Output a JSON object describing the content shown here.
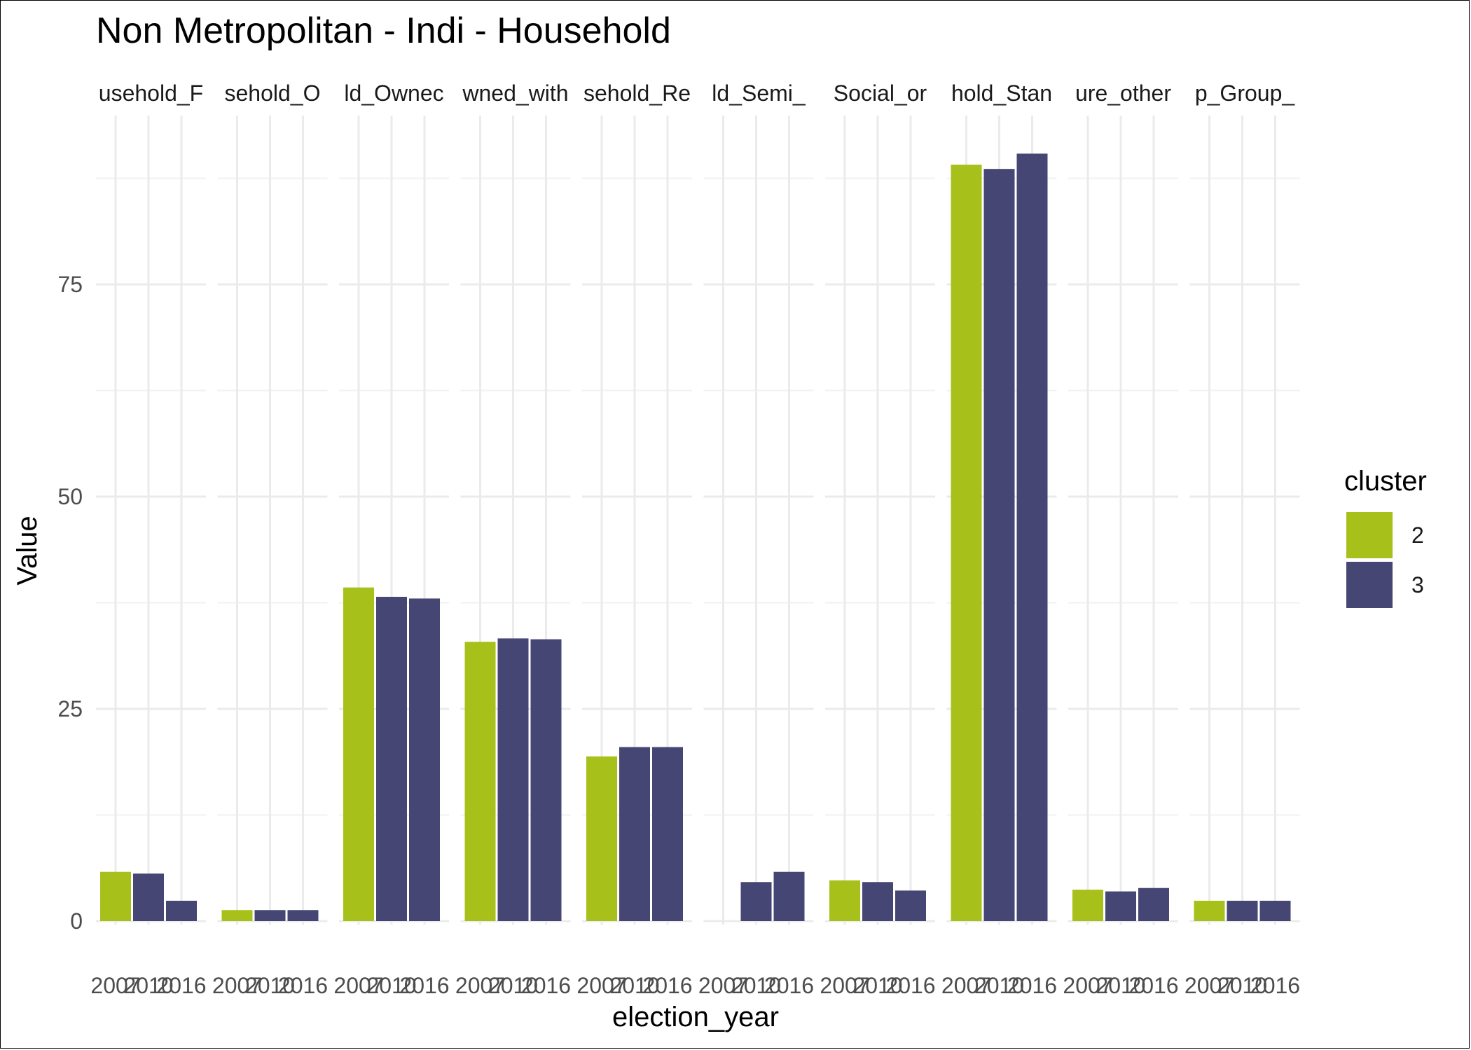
{
  "chart_data": {
    "type": "bar",
    "title": "Non Metropolitan - Indi - Household",
    "xlabel": "election_year",
    "ylabel": "Value",
    "ylim": [
      0,
      91
    ],
    "yticks": [
      0,
      25,
      50,
      75
    ],
    "years": [
      "2007",
      "2010",
      "2016"
    ],
    "legend": {
      "title": "cluster",
      "position": "right",
      "entries": [
        {
          "label": "2",
          "color": "#A8C01A"
        },
        {
          "label": "3",
          "color": "#464674"
        }
      ]
    },
    "facets": [
      {
        "label": "usehold_F",
        "bars": [
          {
            "year": "2007",
            "cluster": "2",
            "value": 5.8
          },
          {
            "year": "2010",
            "cluster": "3",
            "value": 5.6
          },
          {
            "year": "2016",
            "cluster": "3",
            "value": 2.4
          }
        ]
      },
      {
        "label": "sehold_O",
        "bars": [
          {
            "year": "2007",
            "cluster": "2",
            "value": 1.3
          },
          {
            "year": "2010",
            "cluster": "3",
            "value": 1.3
          },
          {
            "year": "2016",
            "cluster": "3",
            "value": 1.3
          }
        ]
      },
      {
        "label": "ld_Ownec",
        "bars": [
          {
            "year": "2007",
            "cluster": "2",
            "value": 39.3
          },
          {
            "year": "2010",
            "cluster": "3",
            "value": 38.2
          },
          {
            "year": "2016",
            "cluster": "3",
            "value": 38.0
          }
        ]
      },
      {
        "label": "wned_with",
        "bars": [
          {
            "year": "2007",
            "cluster": "2",
            "value": 32.9
          },
          {
            "year": "2010",
            "cluster": "3",
            "value": 33.3
          },
          {
            "year": "2016",
            "cluster": "3",
            "value": 33.2
          }
        ]
      },
      {
        "label": "sehold_Re",
        "bars": [
          {
            "year": "2007",
            "cluster": "2",
            "value": 19.4
          },
          {
            "year": "2010",
            "cluster": "3",
            "value": 20.5
          },
          {
            "year": "2016",
            "cluster": "3",
            "value": 20.5
          }
        ]
      },
      {
        "label": "ld_Semi_",
        "bars": [
          {
            "year": "2010",
            "cluster": "3",
            "value": 4.6
          },
          {
            "year": "2016",
            "cluster": "3",
            "value": 5.8
          }
        ]
      },
      {
        "label": "Social_or",
        "bars": [
          {
            "year": "2007",
            "cluster": "2",
            "value": 4.8
          },
          {
            "year": "2010",
            "cluster": "3",
            "value": 4.6
          },
          {
            "year": "2016",
            "cluster": "3",
            "value": 3.6
          }
        ]
      },
      {
        "label": "hold_Stan",
        "bars": [
          {
            "year": "2007",
            "cluster": "2",
            "value": 89.1
          },
          {
            "year": "2010",
            "cluster": "3",
            "value": 88.6
          },
          {
            "year": "2016",
            "cluster": "3",
            "value": 90.4
          }
        ]
      },
      {
        "label": "ure_other",
        "bars": [
          {
            "year": "2007",
            "cluster": "2",
            "value": 3.7
          },
          {
            "year": "2010",
            "cluster": "3",
            "value": 3.5
          },
          {
            "year": "2016",
            "cluster": "3",
            "value": 3.9
          }
        ]
      },
      {
        "label": "p_Group_",
        "bars": [
          {
            "year": "2007",
            "cluster": "2",
            "value": 2.4
          },
          {
            "year": "2010",
            "cluster": "3",
            "value": 2.4
          },
          {
            "year": "2016",
            "cluster": "3",
            "value": 2.4
          }
        ]
      }
    ]
  }
}
